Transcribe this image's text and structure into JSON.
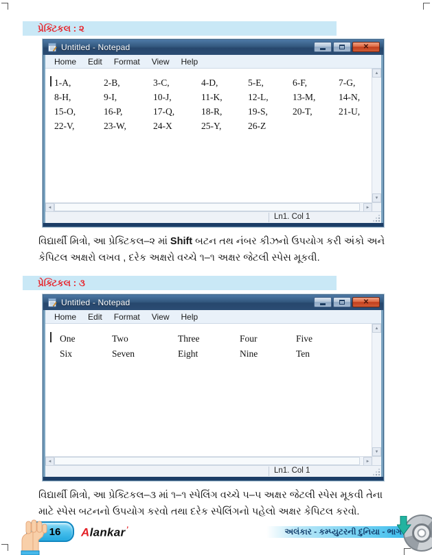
{
  "colors": {
    "header_bar_bg": "#c9e8f6",
    "header_text": "#e8262d",
    "titlebar_blue": "#2b4c73",
    "close_red": "#c23e1d",
    "footer_bar_blue": "#2ab4e8",
    "page_button_blue": "#23a9e0",
    "logo_red": "#e31e24"
  },
  "icons": {
    "close": "✕",
    "scroll_up": "▲",
    "scroll_down": "▼",
    "scroll_left": "◄",
    "scroll_right": "►"
  },
  "section1": {
    "header_label": "પ્રેક્ટિકલ : ૨",
    "caption_pre": "વિદ્યાર્થી મિત્રો, આ પ્રેક્ટિકલ–૨ માં  ",
    "caption_key": "Shift",
    "caption_post": " બટન તથ  નંબર કીઝનો ઉપયોગ કરી અંકો અને કેપિટલ અક્ષરો લખવ , દરેક અક્ષરો વચ્ચે ૧–૧ અક્ષર જેટલી સ્પેસ મૂકવી.",
    "notepad": {
      "title": "Untitled - Notepad",
      "menus": [
        "Home",
        "Edit",
        "Format",
        "View",
        "Help"
      ],
      "content_rows": [
        [
          "1-A,",
          "2-B,",
          "3-C,",
          "4-D,",
          "5-E,",
          "6-F,",
          "7-G,"
        ],
        [
          "8-H,",
          "9-I,",
          "10-J,",
          "11-K,",
          "12-L,",
          "13-M,",
          "14-N,"
        ],
        [
          "15-O,",
          "16-P,",
          "17-Q,",
          "18-R,",
          "19-S,",
          "20-T,",
          "21-U,"
        ],
        [
          "22-V,",
          "23-W,",
          "24-X",
          "25-Y,",
          "26-Z"
        ]
      ],
      "status": "Ln1. Col 1"
    }
  },
  "section2": {
    "header_label": "પ્રેક્ટિકલ : ૩",
    "caption_text": "વિદ્યાર્થી મિત્રો, આ પ્રેક્ટિકલ–૩ માં  ૧–૧ સ્પેલિંગ વચ્ચે ૫–૫ અક્ષર જેટલી સ્પેસ મૂકવી તેના માટે સ્પેસ બટનનો ઉપયોગ કરવો તથા દરેક સ્પેલિંગનો પહેલો અક્ષર કેપિટલ કરવો.",
    "notepad": {
      "title": "Untitled - Notepad",
      "menus": [
        "Home",
        "Edit",
        "Format",
        "View",
        "Help"
      ],
      "content_rows": [
        [
          "One",
          "Two",
          "Three",
          "Four",
          "Five"
        ],
        [
          "Six",
          "Seven",
          "Eight",
          "Nine",
          "Ten"
        ]
      ],
      "status": "Ln1. Col 1"
    }
  },
  "footer": {
    "page_number": "16",
    "logo_initial": "A",
    "logo_rest": "lankar",
    "bar_text": "અલંકાર - કમ્પ્યુટરની દુનિયા - ભાગ-૨"
  }
}
